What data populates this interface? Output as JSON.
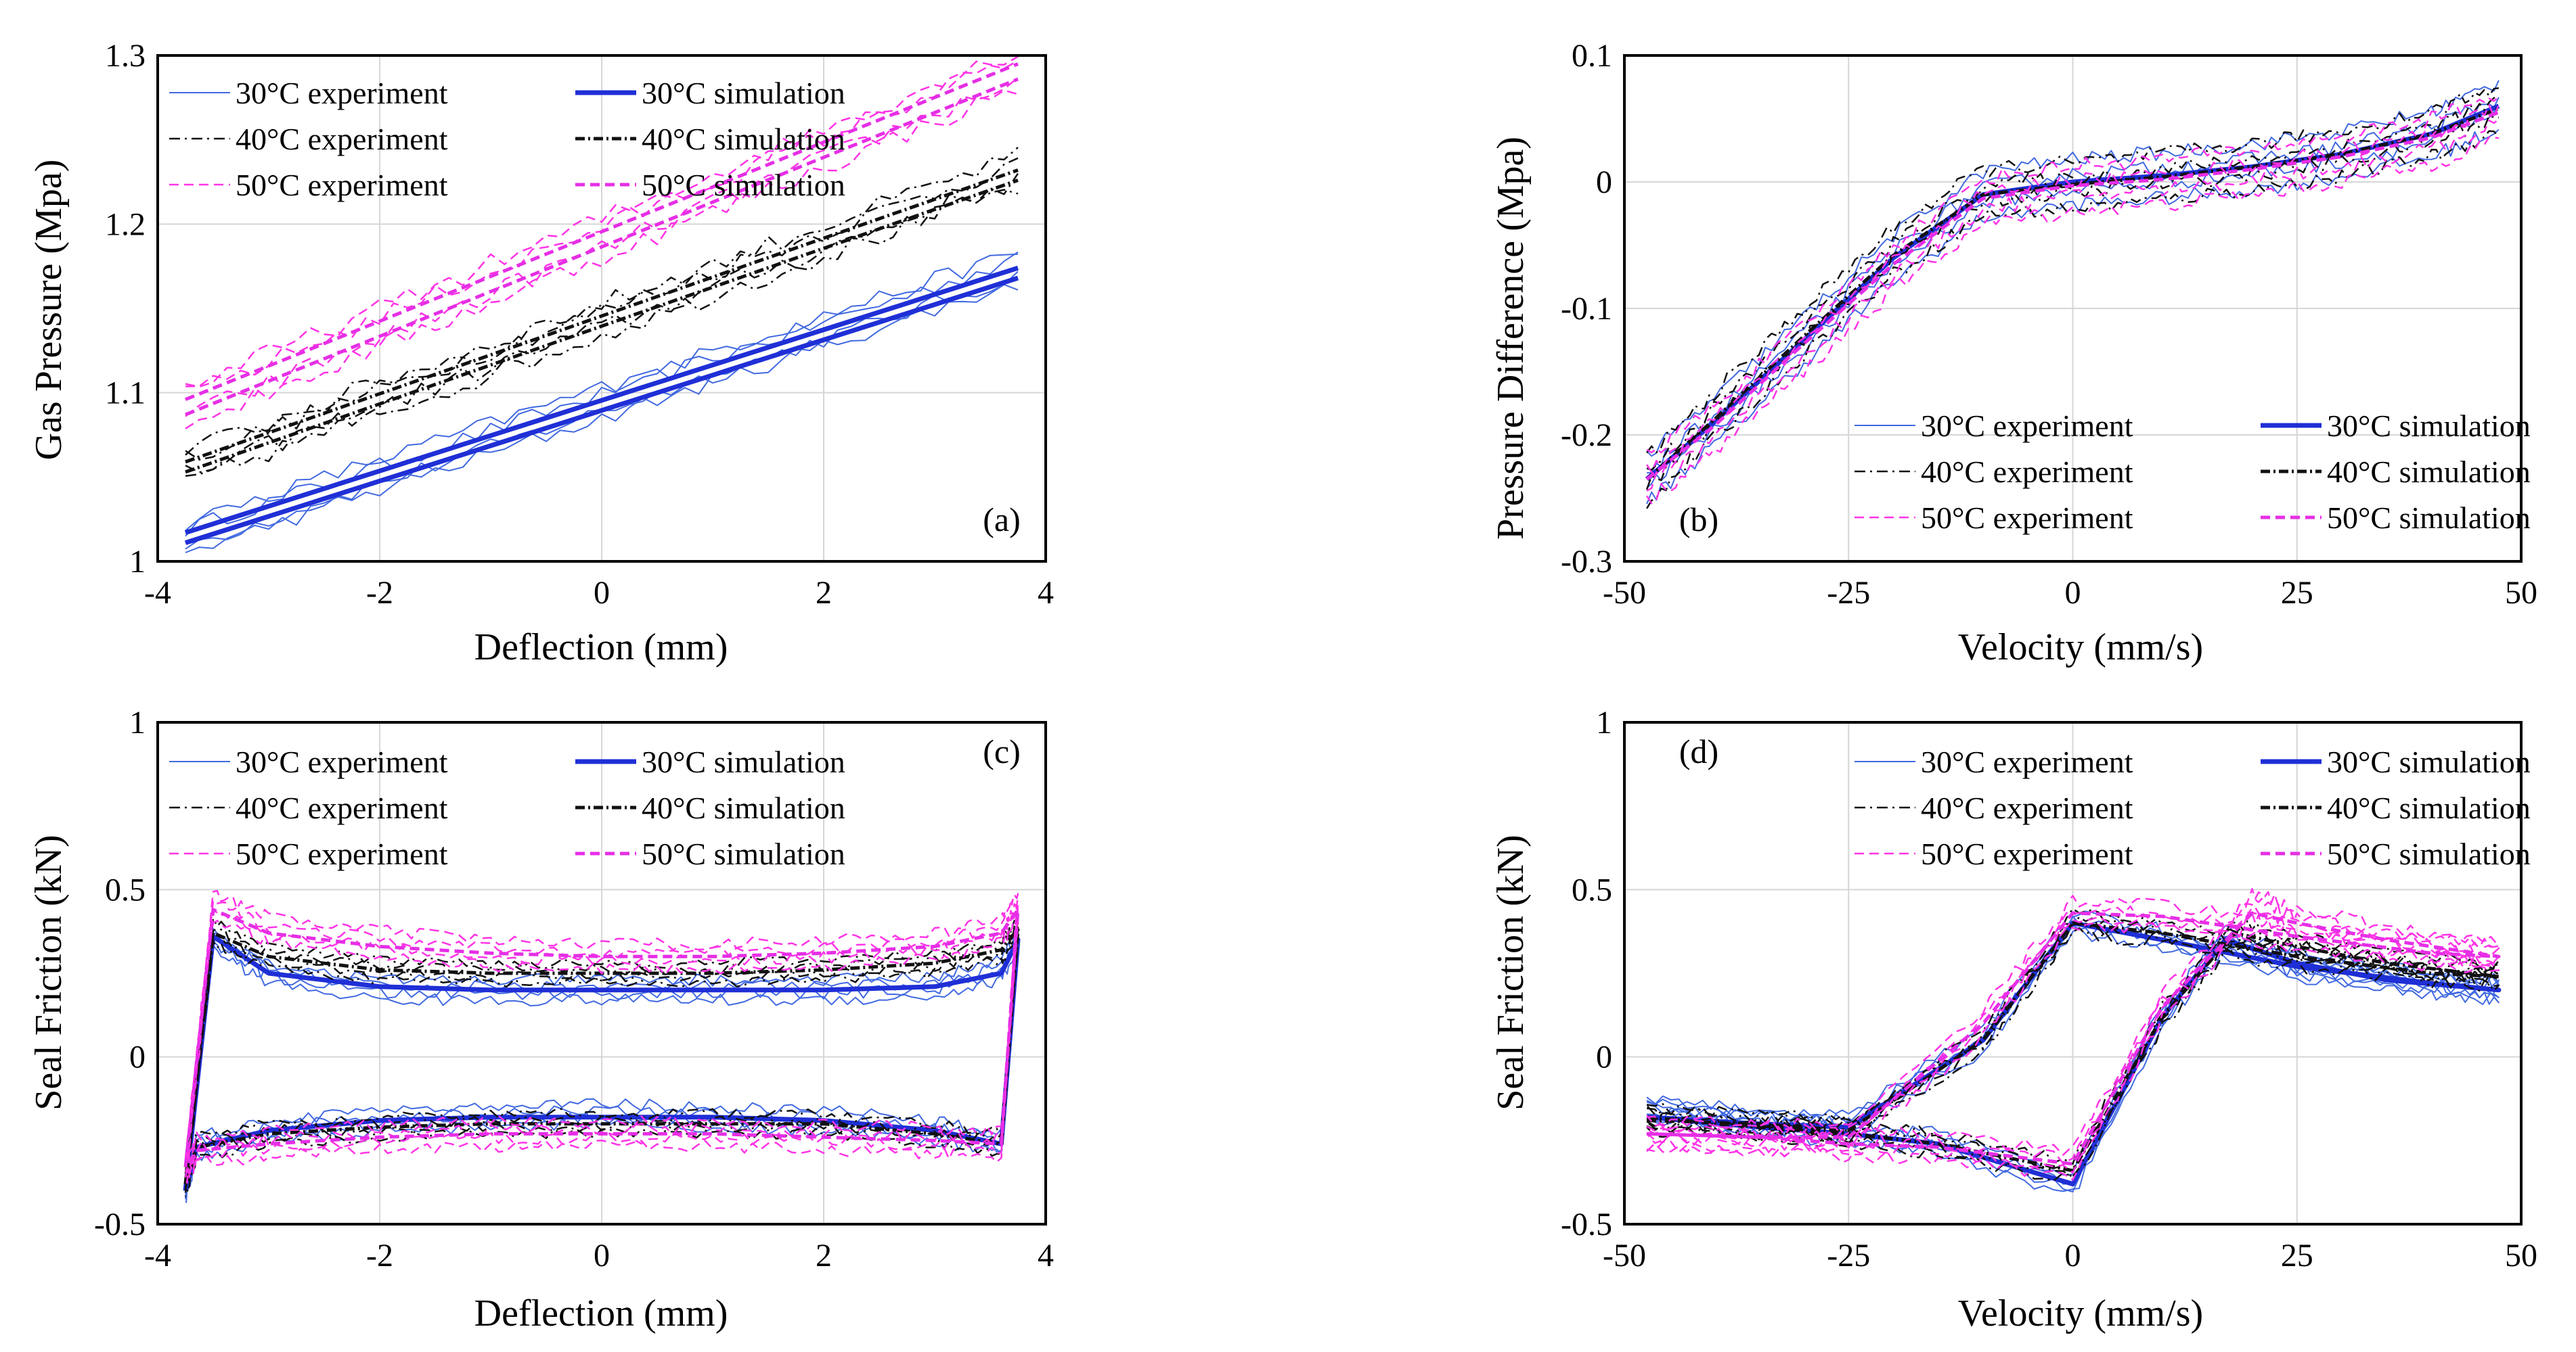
{
  "styles": {
    "30exp": {
      "color": "#4169E1",
      "width": 2,
      "dash": ""
    },
    "30sim": {
      "color": "#1F2FD6",
      "width": 7,
      "dash": ""
    },
    "40exp": {
      "color": "#111111",
      "width": 2.5,
      "dash": "16,7,3,7"
    },
    "40sim": {
      "color": "#111111",
      "width": 5,
      "dash": "14,5,3,5"
    },
    "50exp": {
      "color": "#FF33E6",
      "width": 2.5,
      "dash": "14,8"
    },
    "50sim": {
      "color": "#E62EE6",
      "width": 5,
      "dash": "14,8"
    }
  },
  "chart_data": [
    {
      "type": "line",
      "panel": "(a)",
      "xlabel": "Deflection (mm)",
      "ylabel": "Gas Pressure (Mpa)",
      "xlim": [
        -4,
        4
      ],
      "ylim": [
        1,
        1.3
      ],
      "xticks": [
        -4,
        -2,
        0,
        2,
        4
      ],
      "xtick_labels": [
        "-4",
        "-2",
        "0",
        "2",
        "4"
      ],
      "yticks": [
        1,
        1.1,
        1.2,
        1.3
      ],
      "ytick_labels": [
        "1",
        "1.1",
        "1.2",
        "1.3"
      ],
      "grid": true,
      "legend": {
        "position": "top-left",
        "columns": 2
      },
      "series": [
        {
          "name": "30°C experiment",
          "style": "30exp",
          "kind": "linear",
          "x0": -3.75,
          "x1": 3.75,
          "y0": 1.015,
          "y1": 1.175,
          "band": 0.008,
          "copies": 4,
          "noise": 0.005
        },
        {
          "name": "30°C simulation",
          "style": "30sim",
          "kind": "linear",
          "x0": -3.75,
          "x1": 3.75,
          "y0": 1.015,
          "y1": 1.172,
          "band": 0.004,
          "copies": 1,
          "noise": 0
        },
        {
          "name": "40°C experiment",
          "style": "40exp",
          "kind": "linear",
          "x0": -3.75,
          "x1": 3.75,
          "y0": 1.057,
          "y1": 1.232,
          "band": 0.008,
          "copies": 4,
          "noise": 0.006
        },
        {
          "name": "40°C simulation",
          "style": "40sim",
          "kind": "linear",
          "x0": -3.75,
          "x1": 3.75,
          "y0": 1.057,
          "y1": 1.23,
          "band": 0.004,
          "copies": 1,
          "noise": 0
        },
        {
          "name": "50°C experiment",
          "style": "50exp",
          "kind": "linear",
          "x0": -3.75,
          "x1": 3.75,
          "y0": 1.093,
          "y1": 1.293,
          "band": 0.01,
          "copies": 4,
          "noise": 0.006
        },
        {
          "name": "50°C simulation",
          "style": "50sim",
          "kind": "linear",
          "x0": -3.75,
          "x1": 3.75,
          "y0": 1.093,
          "y1": 1.292,
          "band": 0.006,
          "copies": 1,
          "noise": 0
        }
      ]
    },
    {
      "type": "line",
      "panel": "(b)",
      "xlabel": "Velocity (mm/s)",
      "ylabel": "Pressure Difference (Mpa)",
      "xlim": [
        -50,
        50
      ],
      "ylim": [
        -0.3,
        0.1
      ],
      "xticks": [
        -50,
        -25,
        0,
        25,
        50
      ],
      "xtick_labels": [
        "-50",
        "-25",
        "0",
        "25",
        "50"
      ],
      "yticks": [
        -0.3,
        -0.2,
        -0.1,
        0,
        0.1
      ],
      "ytick_labels": [
        "-0.3",
        "-0.2",
        "-0.1",
        "0",
        "0.1"
      ],
      "grid": true,
      "legend": {
        "position": "bottom-right",
        "columns": 2
      },
      "series": [
        {
          "name": "30°C experiment",
          "style": "30exp",
          "kind": "curve",
          "x": [
            -47.5,
            -40,
            -30,
            -20,
            -10,
            0,
            10,
            20,
            30,
            40,
            47.5
          ],
          "y": [
            -0.235,
            -0.19,
            -0.125,
            -0.06,
            -0.01,
            0.0,
            0.005,
            0.012,
            0.022,
            0.038,
            0.06
          ],
          "band": 0.012,
          "copies": 4,
          "noise": 0.006
        },
        {
          "name": "30°C simulation",
          "style": "30sim",
          "kind": "curve",
          "x": [
            -47.5,
            -40,
            -30,
            -20,
            -10,
            0,
            10,
            20,
            30,
            40,
            47.5
          ],
          "y": [
            -0.235,
            -0.19,
            -0.125,
            -0.06,
            -0.01,
            0.0,
            0.005,
            0.012,
            0.022,
            0.038,
            0.06
          ],
          "band": 0.008,
          "copies": 1,
          "noise": 0
        },
        {
          "name": "40°C experiment",
          "style": "40exp",
          "kind": "curve",
          "x": [
            -47.5,
            -40,
            -30,
            -20,
            -10,
            0,
            10,
            20,
            30,
            40,
            47.5
          ],
          "y": [
            -0.235,
            -0.185,
            -0.118,
            -0.055,
            -0.008,
            -0.003,
            0.004,
            0.012,
            0.022,
            0.038,
            0.058
          ],
          "band": 0.012,
          "copies": 4,
          "noise": 0.006
        },
        {
          "name": "40°C simulation",
          "style": "40sim",
          "kind": "curve",
          "x": [
            -47.5,
            -40,
            -30,
            -20,
            -10,
            0,
            10,
            20,
            30,
            40,
            47.5
          ],
          "y": [
            -0.235,
            -0.188,
            -0.122,
            -0.058,
            -0.01,
            -0.002,
            0.004,
            0.012,
            0.022,
            0.038,
            0.058
          ],
          "band": 0.008,
          "copies": 1,
          "noise": 0
        },
        {
          "name": "50°C experiment",
          "style": "50exp",
          "kind": "curve",
          "x": [
            -47.5,
            -40,
            -30,
            -20,
            -10,
            0,
            10,
            20,
            30,
            40,
            47.5
          ],
          "y": [
            -0.235,
            -0.195,
            -0.132,
            -0.068,
            -0.015,
            -0.005,
            0.0,
            0.008,
            0.018,
            0.032,
            0.052
          ],
          "band": 0.012,
          "copies": 4,
          "noise": 0.006
        },
        {
          "name": "50°C simulation",
          "style": "50sim",
          "kind": "curve",
          "x": [
            -47.5,
            -40,
            -30,
            -20,
            -10,
            0,
            10,
            20,
            30,
            40,
            47.5
          ],
          "y": [
            -0.235,
            -0.193,
            -0.128,
            -0.065,
            -0.013,
            -0.003,
            0.002,
            0.01,
            0.02,
            0.035,
            0.055
          ],
          "band": 0.008,
          "copies": 1,
          "noise": 0
        }
      ]
    },
    {
      "type": "line",
      "panel": "(c)",
      "xlabel": "Deflection (mm)",
      "ylabel": "Seal Friction (kN)",
      "xlim": [
        -4,
        4
      ],
      "ylim": [
        -0.5,
        1
      ],
      "xticks": [
        -4,
        -2,
        0,
        2,
        4
      ],
      "xtick_labels": [
        "-4",
        "-2",
        "0",
        "2",
        "4"
      ],
      "yticks": [
        -0.5,
        0,
        0.5,
        1
      ],
      "ytick_labels": [
        "-0.5",
        "0",
        "0.5",
        "1"
      ],
      "grid": true,
      "legend": {
        "position": "top-left",
        "columns": 2
      },
      "series": [
        {
          "name": "30°C experiment",
          "style": "30exp",
          "kind": "loop",
          "x": [
            -3.75,
            -3.5,
            -3,
            -2,
            -1,
            0,
            1,
            2,
            3,
            3.6,
            3.75,
            3.6,
            3,
            2,
            1,
            0,
            -1,
            -2,
            -3,
            -3.65,
            -3.75
          ],
          "y": [
            -0.4,
            0.35,
            0.25,
            0.2,
            0.2,
            0.2,
            0.2,
            0.2,
            0.21,
            0.26,
            0.35,
            -0.26,
            -0.22,
            -0.19,
            -0.18,
            -0.17,
            -0.18,
            -0.19,
            -0.22,
            -0.27,
            -0.4
          ],
          "band": 0.02,
          "copies": 4,
          "noise": 0.018
        },
        {
          "name": "30°C simulation",
          "style": "30sim",
          "kind": "loop",
          "x": [
            -3.75,
            -3.5,
            -3,
            -2,
            -1,
            0,
            1,
            2,
            3,
            3.6,
            3.75,
            3.6,
            3,
            2,
            1,
            0,
            -1,
            -2,
            -3,
            -3.65,
            -3.75
          ],
          "y": [
            -0.4,
            0.36,
            0.25,
            0.21,
            0.2,
            0.2,
            0.2,
            0.2,
            0.21,
            0.25,
            0.35,
            -0.26,
            -0.22,
            -0.19,
            -0.18,
            -0.18,
            -0.18,
            -0.19,
            -0.22,
            -0.27,
            -0.4
          ],
          "band": 0.01,
          "copies": 1,
          "noise": 0
        },
        {
          "name": "40°C experiment",
          "style": "40exp",
          "kind": "loop",
          "x": [
            -3.75,
            -3.5,
            -3,
            -2,
            -1,
            0,
            1,
            2,
            3,
            3.6,
            3.75,
            3.6,
            3,
            2,
            1,
            0,
            -1,
            -2,
            -3,
            -3.65,
            -3.75
          ],
          "y": [
            -0.38,
            0.37,
            0.3,
            0.26,
            0.25,
            0.25,
            0.25,
            0.26,
            0.28,
            0.32,
            0.38,
            -0.26,
            -0.23,
            -0.2,
            -0.2,
            -0.2,
            -0.2,
            -0.21,
            -0.23,
            -0.27,
            -0.38
          ],
          "band": 0.02,
          "copies": 4,
          "noise": 0.015
        },
        {
          "name": "40°C simulation",
          "style": "40sim",
          "kind": "loop",
          "x": [
            -3.75,
            -3.5,
            -3,
            -2,
            -1,
            0,
            1,
            2,
            3,
            3.6,
            3.75,
            3.6,
            3,
            2,
            1,
            0,
            -1,
            -2,
            -3,
            -3.65,
            -3.75
          ],
          "y": [
            -0.38,
            0.37,
            0.3,
            0.26,
            0.25,
            0.25,
            0.25,
            0.26,
            0.28,
            0.32,
            0.38,
            -0.26,
            -0.23,
            -0.2,
            -0.2,
            -0.2,
            -0.2,
            -0.21,
            -0.23,
            -0.27,
            -0.38
          ],
          "band": 0.01,
          "copies": 1,
          "noise": 0
        },
        {
          "name": "50°C experiment",
          "style": "50exp",
          "kind": "loop",
          "x": [
            -3.75,
            -3.5,
            -3,
            -2,
            -1,
            0,
            1,
            2,
            3,
            3.6,
            3.75,
            3.6,
            3,
            2,
            1,
            0,
            -1,
            -2,
            -3,
            -3.65,
            -3.75
          ],
          "y": [
            -0.33,
            0.45,
            0.38,
            0.34,
            0.31,
            0.3,
            0.3,
            0.31,
            0.33,
            0.38,
            0.45,
            -0.26,
            -0.25,
            -0.24,
            -0.23,
            -0.23,
            -0.23,
            -0.24,
            -0.26,
            -0.28,
            -0.33
          ],
          "band": 0.025,
          "copies": 4,
          "noise": 0.018
        },
        {
          "name": "50°C simulation",
          "style": "50sim",
          "kind": "loop",
          "x": [
            -3.75,
            -3.5,
            -3,
            -2,
            -1,
            0,
            1,
            2,
            3,
            3.6,
            3.75,
            3.6,
            3,
            2,
            1,
            0,
            -1,
            -2,
            -3,
            -3.65,
            -3.75
          ],
          "y": [
            -0.33,
            0.44,
            0.37,
            0.33,
            0.31,
            0.3,
            0.3,
            0.31,
            0.33,
            0.37,
            0.44,
            -0.26,
            -0.25,
            -0.24,
            -0.23,
            -0.23,
            -0.23,
            -0.24,
            -0.26,
            -0.28,
            -0.33
          ],
          "band": 0.012,
          "copies": 1,
          "noise": 0
        }
      ]
    },
    {
      "type": "line",
      "panel": "(d)",
      "xlabel": "Velocity (mm/s)",
      "ylabel": "Seal Friction (kN)",
      "xlim": [
        -50,
        50
      ],
      "ylim": [
        -0.5,
        1
      ],
      "xticks": [
        -50,
        -25,
        0,
        25,
        50
      ],
      "xtick_labels": [
        "-50",
        "-25",
        "0",
        "25",
        "50"
      ],
      "yticks": [
        -0.5,
        0,
        0.5,
        1
      ],
      "ytick_labels": [
        "-0.5",
        "0",
        "0.5",
        "1"
      ],
      "grid": true,
      "legend": {
        "position": "top-right",
        "columns": 2
      },
      "series": [
        {
          "name": "30°C experiment",
          "style": "30exp",
          "kind": "loop",
          "x": [
            -47.5,
            -35,
            -25,
            -15,
            0,
            10,
            17,
            25,
            35,
            47.5,
            40,
            25,
            10,
            0,
            -10,
            -25,
            -35,
            -47.5
          ],
          "y": [
            -0.15,
            -0.2,
            -0.23,
            -0.26,
            -0.38,
            0.12,
            0.35,
            0.28,
            0.24,
            0.2,
            0.22,
            0.27,
            0.35,
            0.4,
            0.05,
            -0.2,
            -0.19,
            -0.16
          ],
          "band": 0.02,
          "copies": 4,
          "noise": 0.02
        },
        {
          "name": "30°C simulation",
          "style": "30sim",
          "kind": "loop",
          "x": [
            -47.5,
            -35,
            -25,
            -15,
            0,
            10,
            17,
            25,
            35,
            47.5,
            40,
            25,
            10,
            0,
            -10,
            -25,
            -35,
            -47.5
          ],
          "y": [
            -0.18,
            -0.21,
            -0.23,
            -0.26,
            -0.38,
            0.12,
            0.35,
            0.28,
            0.23,
            0.2,
            0.22,
            0.27,
            0.35,
            0.4,
            0.05,
            -0.21,
            -0.2,
            -0.18
          ],
          "band": 0.01,
          "copies": 1,
          "noise": 0
        },
        {
          "name": "40°C experiment",
          "style": "40exp",
          "kind": "loop",
          "x": [
            -47.5,
            -35,
            -25,
            -15,
            0,
            10,
            18,
            25,
            35,
            47.5,
            40,
            25,
            10,
            0,
            -10,
            -25,
            -35,
            -47.5
          ],
          "y": [
            -0.18,
            -0.21,
            -0.23,
            -0.26,
            -0.34,
            0.12,
            0.37,
            0.33,
            0.28,
            0.24,
            0.25,
            0.3,
            0.37,
            0.4,
            0.05,
            -0.22,
            -0.2,
            -0.19
          ],
          "band": 0.02,
          "copies": 4,
          "noise": 0.018
        },
        {
          "name": "40°C simulation",
          "style": "40sim",
          "kind": "loop",
          "x": [
            -47.5,
            -35,
            -25,
            -15,
            0,
            10,
            18,
            25,
            35,
            47.5,
            40,
            25,
            10,
            0,
            -10,
            -25,
            -35,
            -47.5
          ],
          "y": [
            -0.18,
            -0.21,
            -0.23,
            -0.26,
            -0.34,
            0.12,
            0.37,
            0.33,
            0.28,
            0.24,
            0.25,
            0.3,
            0.37,
            0.4,
            0.05,
            -0.22,
            -0.2,
            -0.19
          ],
          "band": 0.01,
          "copies": 1,
          "noise": 0
        },
        {
          "name": "50°C experiment",
          "style": "50exp",
          "kind": "loop",
          "x": [
            -47.5,
            -35,
            -25,
            -15,
            0,
            10,
            20,
            25,
            35,
            47.5,
            40,
            25,
            10,
            0,
            -10,
            -25,
            -35,
            -47.5
          ],
          "y": [
            -0.23,
            -0.24,
            -0.26,
            -0.27,
            -0.32,
            0.15,
            0.45,
            0.41,
            0.35,
            0.3,
            0.31,
            0.36,
            0.42,
            0.43,
            0.1,
            -0.24,
            -0.24,
            -0.23
          ],
          "band": 0.025,
          "copies": 4,
          "noise": 0.02
        },
        {
          "name": "50°C simulation",
          "style": "50sim",
          "kind": "loop",
          "x": [
            -47.5,
            -35,
            -25,
            -15,
            0,
            10,
            20,
            25,
            35,
            47.5,
            40,
            25,
            10,
            0,
            -10,
            -25,
            -35,
            -47.5
          ],
          "y": [
            -0.23,
            -0.24,
            -0.26,
            -0.27,
            -0.32,
            0.15,
            0.43,
            0.4,
            0.35,
            0.3,
            0.31,
            0.36,
            0.42,
            0.43,
            0.1,
            -0.24,
            -0.24,
            -0.23
          ],
          "band": 0.012,
          "copies": 1,
          "noise": 0
        }
      ]
    }
  ]
}
